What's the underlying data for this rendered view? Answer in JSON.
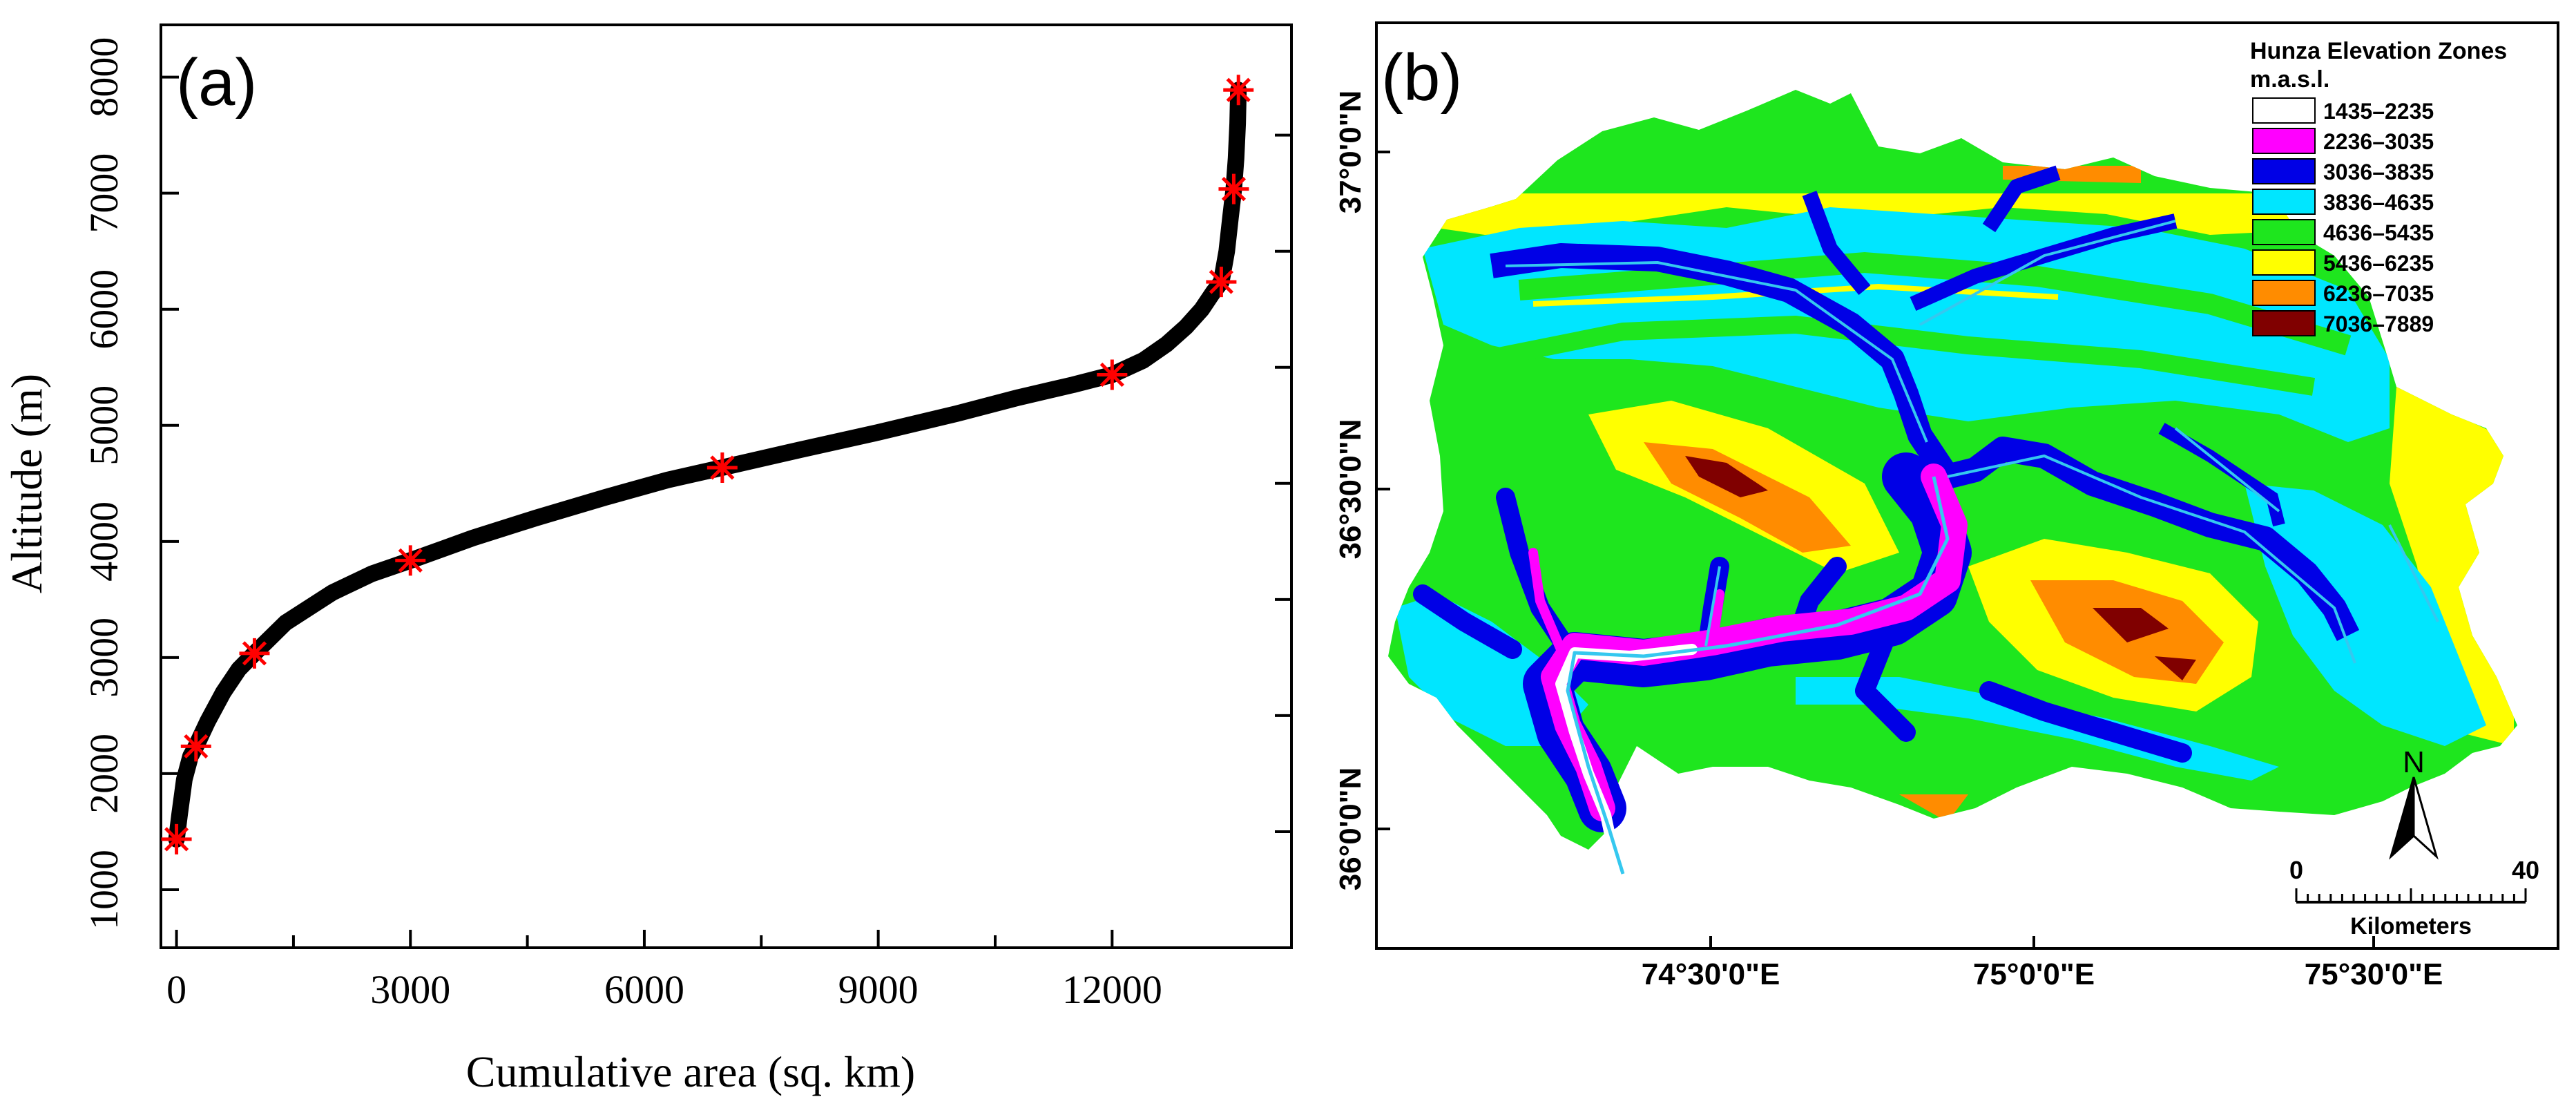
{
  "panel_a": {
    "label": "(a)",
    "chart_data": {
      "type": "line",
      "title": "",
      "xlabel": "Cumulative area (sq. km)",
      "ylabel": "Altitude (m)",
      "xlim": [
        -200,
        14300
      ],
      "ylim": [
        500,
        8450
      ],
      "xticks": [
        0,
        3000,
        6000,
        9000,
        12000
      ],
      "yticks": [
        1000,
        2000,
        3000,
        4000,
        5000,
        6000,
        7000,
        8000
      ],
      "curve": {
        "x": [
          0,
          40,
          100,
          180,
          250,
          400,
          600,
          800,
          1000,
          1400,
          2000,
          2500,
          3000,
          3800,
          4600,
          5500,
          6300,
          7000,
          8000,
          9000,
          10000,
          10800,
          11500,
          12000,
          12400,
          12700,
          12950,
          13150,
          13300,
          13400,
          13470,
          13520,
          13560,
          13590,
          13610,
          13620
        ],
        "y": [
          1435,
          1650,
          1950,
          2150,
          2235,
          2450,
          2700,
          2900,
          3036,
          3300,
          3560,
          3720,
          3836,
          4030,
          4200,
          4380,
          4530,
          4636,
          4790,
          4940,
          5100,
          5240,
          5350,
          5436,
          5560,
          5700,
          5850,
          6000,
          6150,
          6236,
          6500,
          6800,
          7036,
          7300,
          7600,
          7889
        ]
      },
      "markers": {
        "x": [
          0,
          250,
          1000,
          3000,
          7000,
          12000,
          13400,
          13560,
          13620
        ],
        "y": [
          1435,
          2235,
          3036,
          3836,
          4636,
          5436,
          6236,
          7036,
          7889
        ],
        "symbol": "asterisk",
        "color": "#ff0000"
      },
      "line_color": "#000000"
    }
  },
  "panel_b": {
    "label": "(b)",
    "legend": {
      "title": "Hunza Elevation Zones",
      "subtitle": "m.a.s.l.",
      "items": [
        {
          "label": "1435–2235",
          "color": "#ffffff"
        },
        {
          "label": "2236–3035",
          "color": "#ff00ff"
        },
        {
          "label": "3036–3835",
          "color": "#0000e6"
        },
        {
          "label": "3836–4635",
          "color": "#00e6ff"
        },
        {
          "label": "4636–5435",
          "color": "#1ee61e"
        },
        {
          "label": "5436–6235",
          "color": "#ffff00"
        },
        {
          "label": "6236–7035",
          "color": "#ff8c00"
        },
        {
          "label": "7036–7889",
          "color": "#800000"
        }
      ]
    },
    "lat_labels": [
      "37°0'0\"N",
      "36°30'0\"N",
      "36°0'0\"N"
    ],
    "lon_labels": [
      "74°30'0\"E",
      "75°0'0\"E",
      "75°30'0\"E"
    ],
    "north_label": "N",
    "scale": {
      "start": "0",
      "end": "40",
      "unit": "Kilometers"
    }
  }
}
